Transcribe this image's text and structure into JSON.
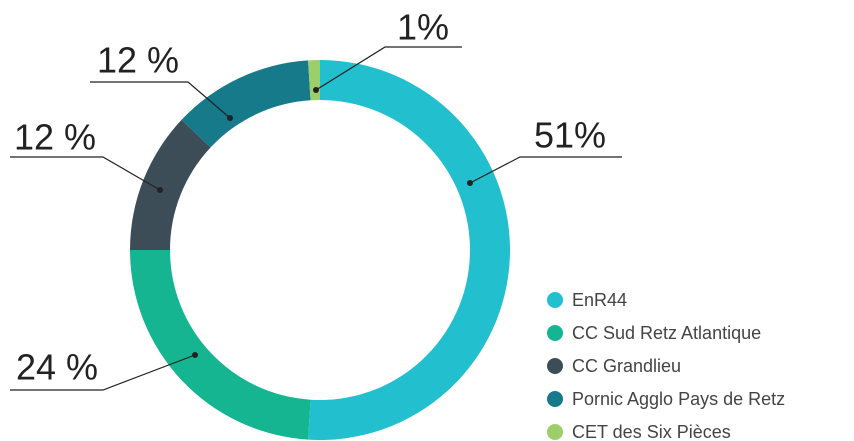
{
  "chart_data": {
    "type": "donut",
    "categories": [
      "EnR44",
      "CC Sud Retz Atlantique",
      "CC Grandlieu",
      "Pornic Agglo Pays de Retz",
      "CET des Six Pièces"
    ],
    "values": [
      51,
      24,
      12,
      12,
      1
    ],
    "value_labels": [
      "51%",
      "24 %",
      "12 %",
      "12 %",
      "1%"
    ],
    "colors": [
      "#22bfcf",
      "#14b590",
      "#3c4d58",
      "#167a8a",
      "#9ccf6a"
    ],
    "legend": "bottom-right"
  }
}
